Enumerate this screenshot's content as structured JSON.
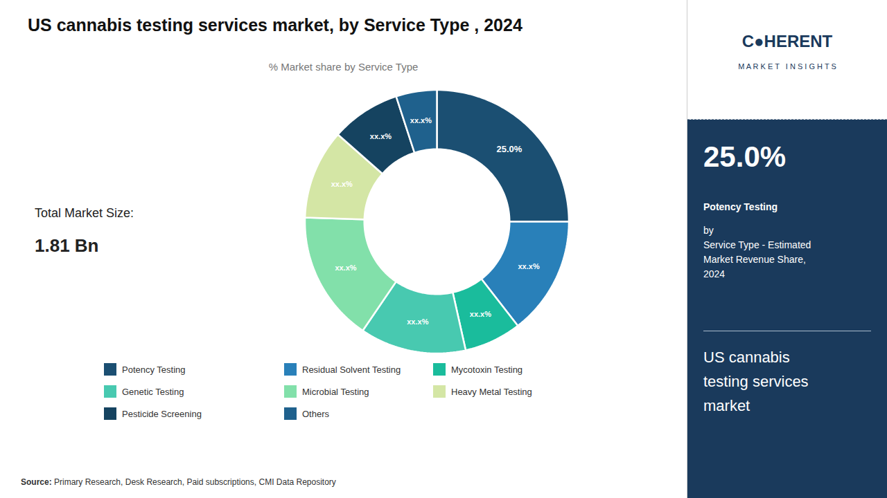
{
  "chart_data": {
    "type": "pie",
    "title": "US cannabis testing services market, by Service Type , 2024",
    "subtitle": "% Market share by Service Type",
    "categories": [
      "Potency Testing",
      "Residual Solvent Testing",
      "Mycotoxin Testing",
      "Genetic Testing",
      "Microbial Testing",
      "Heavy Metal Testing",
      "Pesticide Screening",
      "Others"
    ],
    "values": [
      25.0,
      14.5,
      7.0,
      13.0,
      16.0,
      11.0,
      8.5,
      5.0
    ],
    "value_labels": [
      "25.0%",
      "xx.x%",
      "xx.x%",
      "xx.x%",
      "xx.x%",
      "xx.x%",
      "xx.x%",
      "xx.x%"
    ],
    "colors": [
      "#1b4f72",
      "#2980b9",
      "#1abc9c",
      "#48c9b0",
      "#82e0aa",
      "#d4e6a5",
      "#154360",
      "#1f618d"
    ],
    "data_labels": true,
    "legend": "bottom",
    "annotations": [
      "Total Market Size:",
      "1.81 Bn",
      "Source:",
      " Primary Research, Desk Research, Paid subscriptions, CMI Data Repository",
      "C●HERENT",
      "M A R K E T   I N S I G H T S",
      "25.0%",
      "Potency Testing",
      "by\nService Type - Estimated\nMarket Revenue Share,\n2024",
      "US cannabis\ntesting services\nmarket"
    ]
  }
}
